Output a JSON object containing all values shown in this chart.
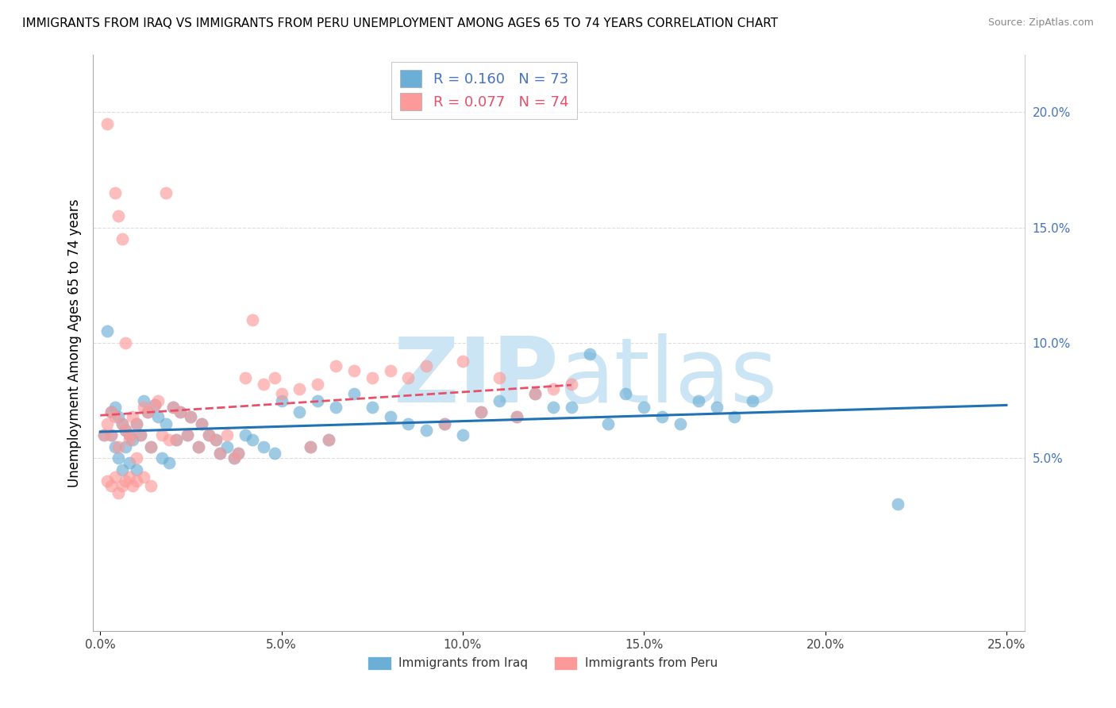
{
  "title": "IMMIGRANTS FROM IRAQ VS IMMIGRANTS FROM PERU UNEMPLOYMENT AMONG AGES 65 TO 74 YEARS CORRELATION CHART",
  "source": "Source: ZipAtlas.com",
  "ylabel": "Unemployment Among Ages 65 to 74 years",
  "xlim": [
    -0.002,
    0.255
  ],
  "ylim": [
    -0.025,
    0.225
  ],
  "xticks": [
    0.0,
    0.05,
    0.1,
    0.15,
    0.2,
    0.25
  ],
  "xticklabels": [
    "0.0%",
    "5.0%",
    "10.0%",
    "15.0%",
    "20.0%",
    "25.0%"
  ],
  "yticks": [
    0.05,
    0.1,
    0.15,
    0.2
  ],
  "yticklabels": [
    "5.0%",
    "10.0%",
    "15.0%",
    "20.0%"
  ],
  "iraq_color": "#6baed6",
  "peru_color": "#fb9a99",
  "iraq_line_color": "#2171b5",
  "peru_line_color": "#e8506a",
  "R_iraq": 0.16,
  "N_iraq": 73,
  "R_peru": 0.077,
  "N_peru": 74,
  "iraq_x": [
    0.001,
    0.002,
    0.003,
    0.003,
    0.004,
    0.004,
    0.005,
    0.005,
    0.006,
    0.006,
    0.007,
    0.007,
    0.008,
    0.008,
    0.009,
    0.01,
    0.01,
    0.011,
    0.012,
    0.013,
    0.014,
    0.015,
    0.016,
    0.017,
    0.018,
    0.019,
    0.02,
    0.021,
    0.022,
    0.024,
    0.025,
    0.027,
    0.028,
    0.03,
    0.032,
    0.033,
    0.035,
    0.037,
    0.038,
    0.04,
    0.042,
    0.045,
    0.048,
    0.05,
    0.055,
    0.058,
    0.06,
    0.063,
    0.065,
    0.07,
    0.075,
    0.08,
    0.085,
    0.09,
    0.095,
    0.1,
    0.105,
    0.11,
    0.115,
    0.12,
    0.125,
    0.13,
    0.135,
    0.14,
    0.145,
    0.15,
    0.155,
    0.16,
    0.165,
    0.17,
    0.175,
    0.18,
    0.22
  ],
  "iraq_y": [
    0.06,
    0.105,
    0.07,
    0.06,
    0.072,
    0.055,
    0.068,
    0.05,
    0.065,
    0.045,
    0.062,
    0.055,
    0.06,
    0.048,
    0.058,
    0.065,
    0.045,
    0.06,
    0.075,
    0.07,
    0.055,
    0.073,
    0.068,
    0.05,
    0.065,
    0.048,
    0.072,
    0.058,
    0.07,
    0.06,
    0.068,
    0.055,
    0.065,
    0.06,
    0.058,
    0.052,
    0.055,
    0.05,
    0.052,
    0.06,
    0.058,
    0.055,
    0.052,
    0.075,
    0.07,
    0.055,
    0.075,
    0.058,
    0.072,
    0.078,
    0.072,
    0.068,
    0.065,
    0.062,
    0.065,
    0.06,
    0.07,
    0.075,
    0.068,
    0.078,
    0.072,
    0.072,
    0.095,
    0.065,
    0.078,
    0.072,
    0.068,
    0.065,
    0.075,
    0.072,
    0.068,
    0.075,
    0.03
  ],
  "peru_x": [
    0.001,
    0.002,
    0.002,
    0.003,
    0.003,
    0.004,
    0.004,
    0.005,
    0.005,
    0.006,
    0.006,
    0.007,
    0.007,
    0.008,
    0.008,
    0.009,
    0.01,
    0.01,
    0.011,
    0.012,
    0.013,
    0.014,
    0.015,
    0.016,
    0.017,
    0.018,
    0.019,
    0.02,
    0.021,
    0.022,
    0.024,
    0.025,
    0.027,
    0.028,
    0.03,
    0.032,
    0.033,
    0.035,
    0.037,
    0.038,
    0.04,
    0.042,
    0.045,
    0.048,
    0.05,
    0.055,
    0.058,
    0.06,
    0.063,
    0.065,
    0.07,
    0.075,
    0.08,
    0.085,
    0.09,
    0.095,
    0.1,
    0.105,
    0.11,
    0.115,
    0.12,
    0.125,
    0.13,
    0.002,
    0.003,
    0.004,
    0.005,
    0.006,
    0.007,
    0.008,
    0.009,
    0.01,
    0.012,
    0.014
  ],
  "peru_y": [
    0.06,
    0.065,
    0.195,
    0.07,
    0.06,
    0.165,
    0.068,
    0.155,
    0.055,
    0.145,
    0.065,
    0.062,
    0.1,
    0.06,
    0.058,
    0.068,
    0.065,
    0.05,
    0.06,
    0.072,
    0.07,
    0.055,
    0.073,
    0.075,
    0.06,
    0.165,
    0.058,
    0.072,
    0.058,
    0.07,
    0.06,
    0.068,
    0.055,
    0.065,
    0.06,
    0.058,
    0.052,
    0.06,
    0.05,
    0.052,
    0.085,
    0.11,
    0.082,
    0.085,
    0.078,
    0.08,
    0.055,
    0.082,
    0.058,
    0.09,
    0.088,
    0.085,
    0.088,
    0.085,
    0.09,
    0.065,
    0.092,
    0.07,
    0.085,
    0.068,
    0.078,
    0.08,
    0.082,
    0.04,
    0.038,
    0.042,
    0.035,
    0.038,
    0.04,
    0.042,
    0.038,
    0.04,
    0.042,
    0.038
  ],
  "watermark_zip": "ZIP",
  "watermark_atlas": "atlas",
  "watermark_color": "#cce5f5",
  "background_color": "#ffffff",
  "grid_color": "#dddddd",
  "legend_text_iraq": "R = 0.160   N = 73",
  "legend_text_peru": "R = 0.077   N = 74",
  "legend_color_iraq": "#4472c4",
  "legend_color_peru": "#e8506a",
  "bottom_legend_iraq": "Immigrants from Iraq",
  "bottom_legend_peru": "Immigrants from Peru"
}
